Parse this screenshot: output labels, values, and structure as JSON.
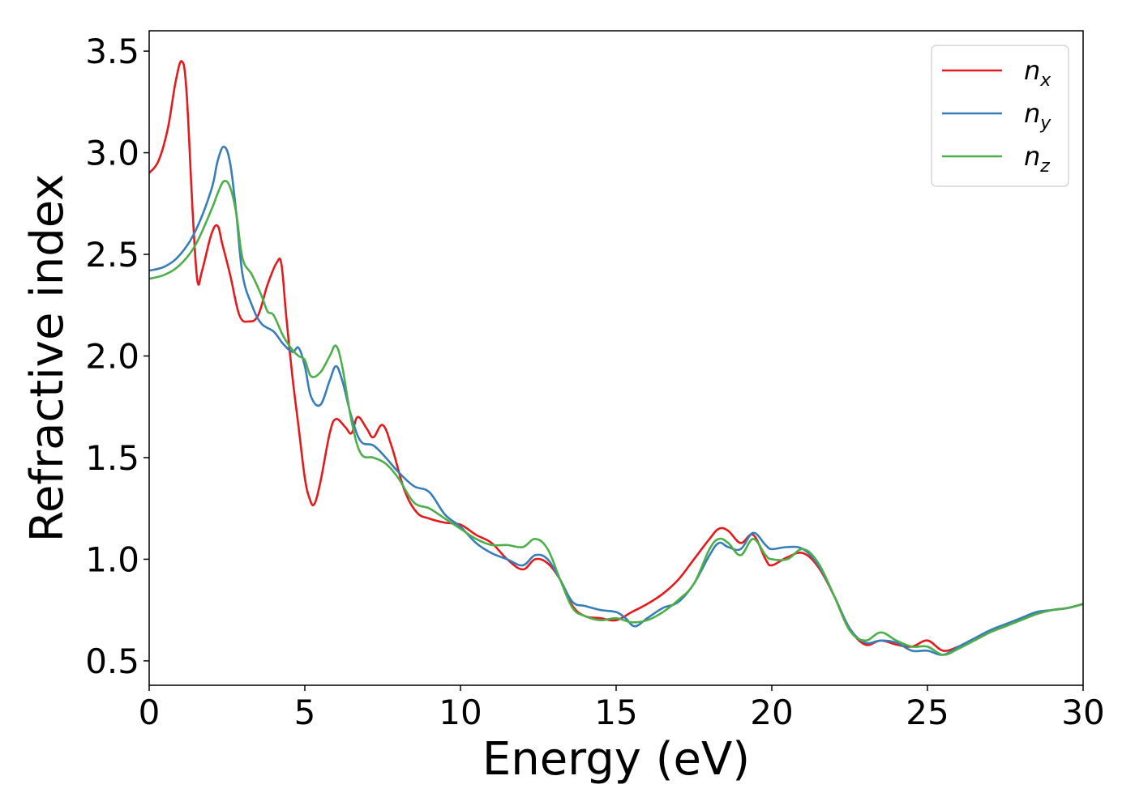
{
  "chart_data": {
    "type": "line",
    "xlabel": "Energy (eV)",
    "ylabel": "Refractive index",
    "xlim": [
      0,
      30
    ],
    "ylim": [
      0.38,
      3.6
    ],
    "xticks": [
      0,
      5,
      10,
      15,
      20,
      25,
      30
    ],
    "xtick_labels": [
      "0",
      "5",
      "10",
      "15",
      "20",
      "25",
      "30"
    ],
    "yticks": [
      0.5,
      1.0,
      1.5,
      2.0,
      2.5,
      3.0,
      3.5
    ],
    "ytick_labels": [
      "0.5",
      "1.0",
      "1.5",
      "2.0",
      "2.5",
      "3.0",
      "3.5"
    ],
    "grid": false,
    "legend_position": "top-right",
    "series": [
      {
        "name": "n",
        "subscript": "x",
        "color": "#e41a1c",
        "x": [
          0,
          0.3,
          0.6,
          0.85,
          1.05,
          1.2,
          1.4,
          1.55,
          1.7,
          2.0,
          2.2,
          2.35,
          2.6,
          2.9,
          3.2,
          3.5,
          3.8,
          4.1,
          4.25,
          4.4,
          4.6,
          4.8,
          5.0,
          5.15,
          5.3,
          5.5,
          5.8,
          6.0,
          6.3,
          6.5,
          6.7,
          7.0,
          7.2,
          7.5,
          7.8,
          8.2,
          8.6,
          9.0,
          9.5,
          10.0,
          10.5,
          11.0,
          11.5,
          12.0,
          12.4,
          12.8,
          13.2,
          13.6,
          14.0,
          14.5,
          15.0,
          15.5,
          16.0,
          16.5,
          17.0,
          17.5,
          18.0,
          18.3,
          18.6,
          19.0,
          19.4,
          19.8,
          20.0,
          20.5,
          21.0,
          21.5,
          22.0,
          22.5,
          23.0,
          23.5,
          24.0,
          24.5,
          25.0,
          25.5,
          26.0,
          26.5,
          27.0,
          27.5,
          28.0,
          28.5,
          29.0,
          29.5,
          30.0
        ],
        "y": [
          2.9,
          2.96,
          3.12,
          3.35,
          3.45,
          3.3,
          2.7,
          2.37,
          2.42,
          2.6,
          2.64,
          2.55,
          2.4,
          2.2,
          2.17,
          2.2,
          2.35,
          2.46,
          2.45,
          2.2,
          1.9,
          1.65,
          1.4,
          1.3,
          1.27,
          1.38,
          1.62,
          1.69,
          1.65,
          1.62,
          1.7,
          1.64,
          1.6,
          1.66,
          1.55,
          1.34,
          1.23,
          1.2,
          1.18,
          1.17,
          1.12,
          1.08,
          1.0,
          0.95,
          1.0,
          0.98,
          0.9,
          0.77,
          0.72,
          0.71,
          0.7,
          0.74,
          0.78,
          0.83,
          0.9,
          1.0,
          1.1,
          1.15,
          1.14,
          1.08,
          1.12,
          1.0,
          0.97,
          1.01,
          1.03,
          0.96,
          0.82,
          0.66,
          0.58,
          0.6,
          0.58,
          0.57,
          0.6,
          0.55,
          0.57,
          0.6,
          0.64,
          0.67,
          0.7,
          0.73,
          0.75,
          0.76,
          0.78
        ]
      },
      {
        "name": "n",
        "subscript": "y",
        "color": "#377eb8",
        "x": [
          0,
          0.5,
          1.0,
          1.5,
          2.0,
          2.2,
          2.4,
          2.6,
          2.8,
          3.0,
          3.3,
          3.6,
          4.0,
          4.3,
          4.6,
          4.8,
          5.0,
          5.2,
          5.5,
          5.8,
          6.0,
          6.2,
          6.5,
          6.8,
          7.2,
          7.6,
          8.0,
          8.5,
          9.0,
          9.5,
          10.0,
          10.5,
          11.0,
          11.5,
          12.0,
          12.4,
          12.8,
          13.2,
          13.6,
          14.0,
          14.5,
          15.0,
          15.3,
          15.6,
          16.0,
          16.5,
          17.0,
          17.5,
          18.0,
          18.3,
          18.6,
          19.0,
          19.4,
          19.8,
          20.0,
          20.5,
          21.0,
          21.5,
          22.0,
          22.5,
          23.0,
          23.5,
          24.0,
          24.5,
          25.0,
          25.5,
          26.0,
          26.5,
          27.0,
          27.5,
          28.0,
          28.5,
          29.0,
          29.5,
          30.0
        ],
        "y": [
          2.42,
          2.44,
          2.5,
          2.62,
          2.82,
          2.96,
          3.03,
          2.95,
          2.7,
          2.4,
          2.25,
          2.16,
          2.12,
          2.06,
          2.02,
          2.04,
          1.95,
          1.8,
          1.76,
          1.88,
          1.95,
          1.88,
          1.7,
          1.58,
          1.56,
          1.5,
          1.43,
          1.36,
          1.33,
          1.22,
          1.16,
          1.08,
          1.03,
          1.0,
          0.97,
          1.02,
          1.0,
          0.9,
          0.79,
          0.77,
          0.75,
          0.74,
          0.71,
          0.67,
          0.71,
          0.76,
          0.79,
          0.88,
          1.02,
          1.08,
          1.06,
          1.05,
          1.13,
          1.07,
          1.05,
          1.06,
          1.05,
          0.97,
          0.82,
          0.66,
          0.59,
          0.6,
          0.59,
          0.55,
          0.55,
          0.53,
          0.57,
          0.61,
          0.65,
          0.68,
          0.71,
          0.74,
          0.75,
          0.76,
          0.78
        ]
      },
      {
        "name": "n",
        "subscript": "z",
        "color": "#4daf4a",
        "x": [
          0,
          0.5,
          1.0,
          1.5,
          2.0,
          2.2,
          2.4,
          2.6,
          2.8,
          3.0,
          3.3,
          3.6,
          3.8,
          4.0,
          4.3,
          4.6,
          4.8,
          5.0,
          5.2,
          5.5,
          5.8,
          6.0,
          6.2,
          6.5,
          6.8,
          7.2,
          7.6,
          8.0,
          8.5,
          9.0,
          9.5,
          10.0,
          10.5,
          11.0,
          11.5,
          12.0,
          12.4,
          12.8,
          13.2,
          13.6,
          14.0,
          14.5,
          15.0,
          15.5,
          16.0,
          16.5,
          17.0,
          17.5,
          18.0,
          18.3,
          18.6,
          19.0,
          19.4,
          19.8,
          20.0,
          20.5,
          21.0,
          21.5,
          22.0,
          22.5,
          23.0,
          23.5,
          24.0,
          24.5,
          25.0,
          25.5,
          26.0,
          26.5,
          27.0,
          27.5,
          28.0,
          28.5,
          29.0,
          29.5,
          30.0
        ],
        "y": [
          2.38,
          2.4,
          2.45,
          2.55,
          2.72,
          2.8,
          2.86,
          2.83,
          2.7,
          2.48,
          2.4,
          2.3,
          2.22,
          2.2,
          2.1,
          2.03,
          2.0,
          1.98,
          1.9,
          1.92,
          2.0,
          2.05,
          1.95,
          1.68,
          1.52,
          1.5,
          1.47,
          1.4,
          1.28,
          1.25,
          1.2,
          1.15,
          1.1,
          1.07,
          1.07,
          1.06,
          1.1,
          1.05,
          0.9,
          0.76,
          0.72,
          0.7,
          0.71,
          0.69,
          0.7,
          0.74,
          0.8,
          0.88,
          1.05,
          1.1,
          1.08,
          1.02,
          1.1,
          1.02,
          1.0,
          1.0,
          1.05,
          0.98,
          0.82,
          0.65,
          0.6,
          0.64,
          0.6,
          0.57,
          0.57,
          0.53,
          0.56,
          0.6,
          0.64,
          0.67,
          0.7,
          0.73,
          0.75,
          0.76,
          0.78
        ]
      }
    ]
  }
}
